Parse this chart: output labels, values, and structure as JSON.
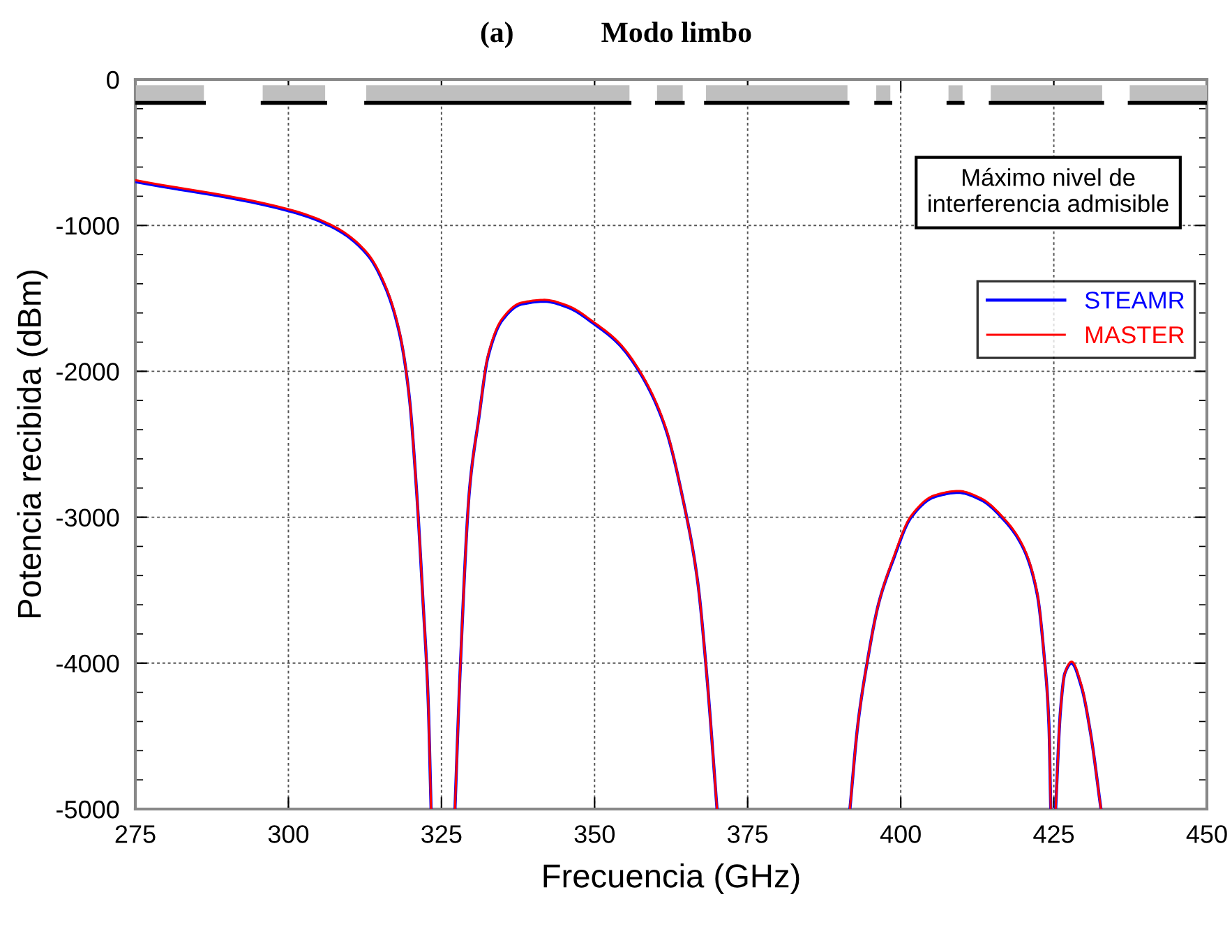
{
  "chart_data": {
    "type": "line",
    "title": "(a)            Modo limbo",
    "xlabel": "Frecuencia (GHz)",
    "ylabel": "Potencia recibida (dBm)",
    "xlim": [
      275,
      450
    ],
    "xticks": [
      275,
      300,
      325,
      350,
      375,
      400,
      425,
      450
    ],
    "ylim": [
      -5000,
      0
    ],
    "yticks": [
      -5000,
      -4000,
      -3000,
      -2000,
      -1000,
      0
    ],
    "grid": true,
    "legend": "top right",
    "line_style": "solid",
    "marker": "none",
    "annotations": [
      "Máximo nivel de interferencia admisible"
    ],
    "series": [
      {
        "type": "line",
        "color": "#000000",
        "x": [
          275.1,
          286.2,
          291,
          295.8,
          306.0,
          309,
          312.7,
          355.7,
          358,
          360.2,
          364.4,
          366,
          368.2,
          391.3,
          394,
          396.0,
          398.3,
          403,
          407.8,
          410.1,
          412,
          414.7,
          432.9,
          435,
          437.4,
          450
        ],
        "values": [
          -160,
          -160,
          null,
          -160,
          -160,
          null,
          -160,
          -160,
          null,
          -160,
          -160,
          null,
          -160,
          -160,
          null,
          -160,
          -160,
          null,
          -160,
          -160,
          null,
          -160,
          -160,
          null,
          -160,
          -160
        ],
        "lower": [
          -160,
          -160,
          null,
          -160,
          -160,
          null,
          -160,
          -160,
          null,
          -160,
          -160,
          null,
          -160,
          -160,
          null,
          -160,
          -160,
          null,
          -160,
          -160,
          null,
          -160,
          -160,
          null,
          -160,
          -160
        ],
        "upper": [
          -40,
          -40,
          null,
          -40,
          -40,
          null,
          -40,
          -40,
          null,
          -40,
          -40,
          null,
          -40,
          -40,
          null,
          -40,
          -40,
          null,
          -40,
          -40,
          null,
          -40,
          -40,
          null,
          -40,
          -40
        ]
      },
      {
        "name": "STEAMR",
        "color": "#0000ff",
        "x": [
          275,
          300.1,
          307.6,
          312.9,
          315.9,
          318.2,
          319.7,
          320.9,
          322.0,
          322.8,
          323.3,
          325,
          327.2,
          328.1,
          329.6,
          331.1,
          332.6,
          334.9,
          338.0,
          341.8,
          345.6,
          350.1,
          353.9,
          357.7,
          361.5,
          364.5,
          366.8,
          368.3,
          370.0,
          380,
          391.7,
          393.0,
          394.5,
          396.4,
          398.7,
          401.7,
          405.5,
          409.4,
          413.1,
          416.9,
          420.0,
          422.3,
          423.4,
          424.2,
          424.5,
          425,
          425.3,
          426.1,
          426.8,
          427.9,
          429.5,
          431.0,
          432.7
        ],
        "values": [
          -700,
          -900,
          -1020,
          -1200,
          -1430,
          -1750,
          -2160,
          -2800,
          -3590,
          -4230,
          -5000,
          null,
          -5000,
          -4000,
          -2800,
          -2320,
          -1900,
          -1650,
          -1540,
          -1520,
          -1560,
          -1680,
          -1810,
          -2030,
          -2380,
          -2890,
          -3430,
          -4070,
          -5000,
          null,
          -5000,
          -4420,
          -4000,
          -3590,
          -3300,
          -3000,
          -2860,
          -2830,
          -2880,
          -3020,
          -3210,
          -3530,
          -3940,
          -4420,
          -5000,
          null,
          -5000,
          -4320,
          -4070,
          -4000,
          -4160,
          -4480,
          -5000
        ]
      },
      {
        "name": "MASTER",
        "color": "#ff0000",
        "x": [
          275,
          300.1,
          307.6,
          312.9,
          315.9,
          318.2,
          319.7,
          320.9,
          322.0,
          322.8,
          323.3,
          325,
          327.2,
          328.1,
          329.6,
          331.1,
          332.6,
          334.9,
          338.0,
          341.8,
          345.6,
          350.1,
          353.9,
          357.7,
          361.5,
          364.5,
          366.8,
          368.3,
          370.0,
          380,
          391.7,
          393.0,
          394.5,
          396.4,
          398.7,
          401.7,
          405.5,
          409.4,
          413.1,
          416.9,
          420.0,
          422.3,
          423.4,
          424.2,
          424.5,
          425,
          425.3,
          426.1,
          426.8,
          427.9,
          429.5,
          431.0,
          432.7
        ],
        "values": [
          -690,
          -890,
          -1010,
          -1190,
          -1420,
          -1740,
          -2160,
          -2800,
          -3590,
          -4230,
          -5000,
          null,
          -5000,
          -4000,
          -2800,
          -2320,
          -1890,
          -1640,
          -1530,
          -1510,
          -1550,
          -1670,
          -1800,
          -2020,
          -2370,
          -2890,
          -3430,
          -4070,
          -5000,
          null,
          -5000,
          -4420,
          -4000,
          -3590,
          -3290,
          -2990,
          -2850,
          -2820,
          -2870,
          -3010,
          -3200,
          -3520,
          -3940,
          -4420,
          -5000,
          null,
          -5000,
          -4320,
          -4070,
          -3990,
          -4150,
          -4480,
          -5000
        ]
      }
    ]
  }
}
